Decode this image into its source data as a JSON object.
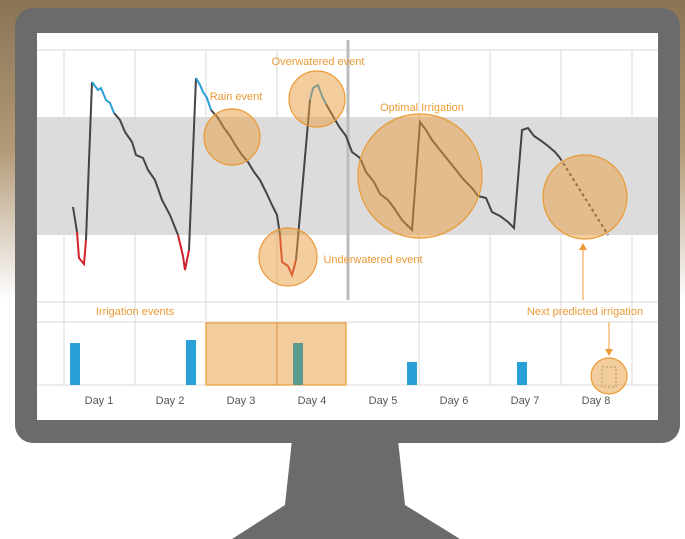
{
  "annotations": {
    "overwatered": "Overwatered event",
    "rain": "Rain event",
    "optimal": "Optimal Irrigation",
    "underwatered": "Underwatered event",
    "irrigation": "Irrigation events",
    "predicted": "Next predicted irrigation"
  },
  "days": [
    "Day 1",
    "Day 2",
    "Day 3",
    "Day 4",
    "Day 5",
    "Day 6",
    "Day 7",
    "Day 8"
  ]
}
